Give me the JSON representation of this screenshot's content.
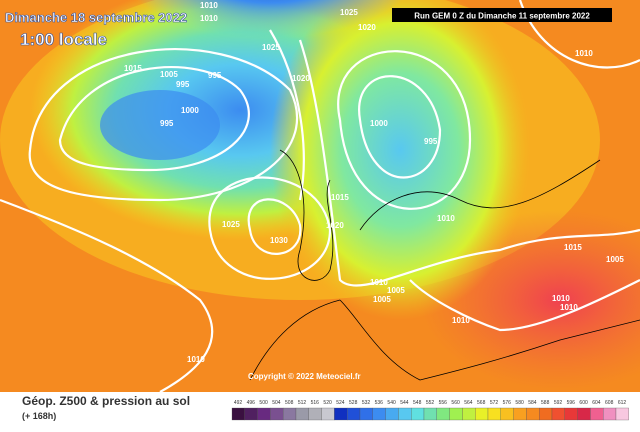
{
  "header": {
    "date": "Dimanche 18 septembre 2022",
    "time": "1:00 locale",
    "run": "Run GEM 0 Z du Dimanche 11 septembre 2022"
  },
  "footer": {
    "title": "Géop. Z500 & pression au sol",
    "lead": "(+ 168h)",
    "copyright": "Copyright © 2022 Meteociel.fr"
  },
  "isobar_labels": [
    "1010",
    "1010",
    "1025",
    "1020",
    "1015",
    "1005",
    "995",
    "1025",
    "995",
    "1000",
    "995",
    "1020",
    "1000",
    "995",
    "1015",
    "1010",
    "1025",
    "1030",
    "1020",
    "1010",
    "1005",
    "1005",
    "1010",
    "1010",
    "1010",
    "1015",
    "1005",
    "1010",
    "1010"
  ],
  "scale": [
    "492",
    "496",
    "500",
    "504",
    "508",
    "512",
    "516",
    "520",
    "524",
    "528",
    "532",
    "536",
    "540",
    "544",
    "548",
    "552",
    "556",
    "560",
    "564",
    "568",
    "572",
    "576",
    "580",
    "584",
    "588",
    "592",
    "596",
    "600",
    "604",
    "608",
    "612"
  ]
}
